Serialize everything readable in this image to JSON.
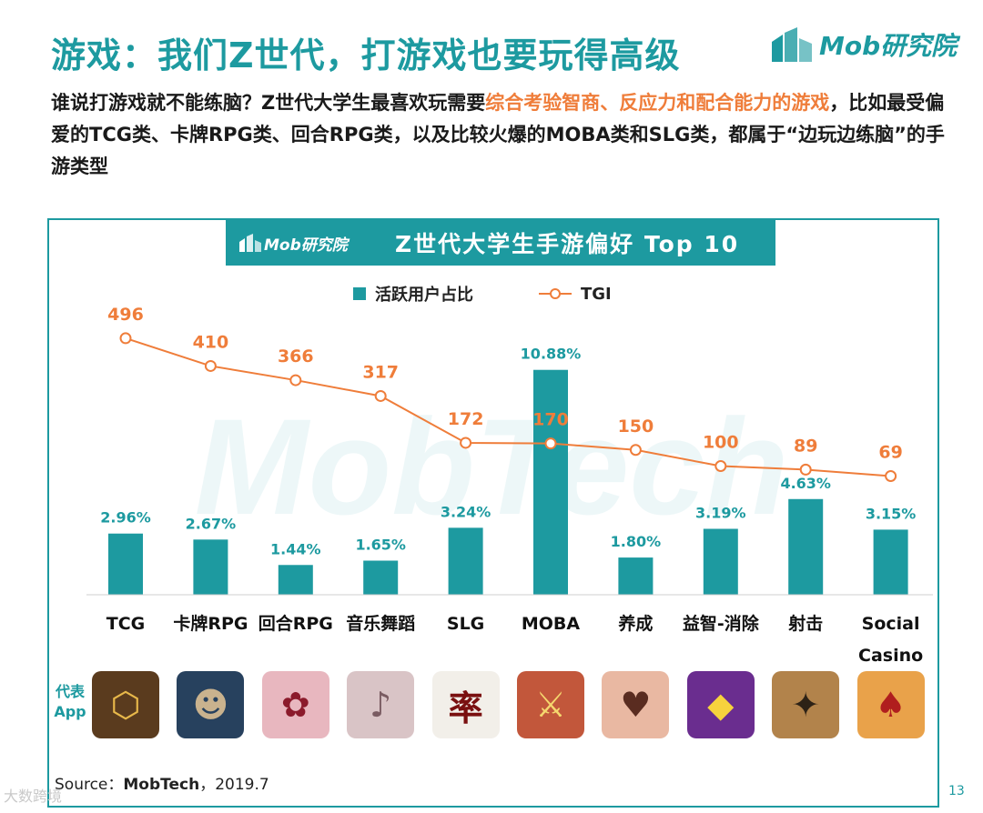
{
  "header": {
    "title": "游戏：我们Z世代，打游戏也要玩得高级",
    "logo_text": "Mob研究院"
  },
  "intro": {
    "part1": "谁说打游戏就不能练脑？Z世代大学生最喜欢玩需要",
    "highlight": "综合考验智商、反应力和配合能力的游戏",
    "part2": "，比如最受偏爱的TCG类、卡牌RPG类、回合RPG类，以及比较火爆的MOBA类和SLG类，都属于“边玩边练脑”的手游类型"
  },
  "chart_header": {
    "logo_text": "Mob研究院",
    "title": "Z世代大学生手游偏好 Top 10"
  },
  "legend": {
    "bar_label": "活跃用户占比",
    "line_label": "TGI"
  },
  "watermark": "MobTech",
  "chart_data": {
    "type": "bar",
    "title": "Z世代大学生手游偏好 Top 10",
    "categories": [
      "TCG",
      "卡牌RPG",
      "回合RPG",
      "音乐舞蹈",
      "SLG",
      "MOBA",
      "养成",
      "益智-消除",
      "射击",
      "Social Casino"
    ],
    "category_lines": [
      [
        "TCG"
      ],
      [
        "卡牌RPG"
      ],
      [
        "回合RPG"
      ],
      [
        "音乐舞蹈"
      ],
      [
        "SLG"
      ],
      [
        "MOBA"
      ],
      [
        "养成"
      ],
      [
        "益智-消除"
      ],
      [
        "射击"
      ],
      [
        "Social",
        "Casino"
      ]
    ],
    "series": [
      {
        "name": "活跃用户占比",
        "type": "bar",
        "values": [
          2.96,
          2.67,
          1.44,
          1.65,
          3.24,
          10.88,
          1.8,
          3.19,
          4.63,
          3.15
        ],
        "labels": [
          "2.96%",
          "2.67%",
          "1.44%",
          "1.65%",
          "3.24%",
          "10.88%",
          "1.80%",
          "3.19%",
          "4.63%",
          "3.15%"
        ],
        "color": "#1d9aa0"
      },
      {
        "name": "TGI",
        "type": "line",
        "values": [
          496,
          410,
          366,
          317,
          172,
          170,
          150,
          100,
          89,
          69
        ],
        "color": "#ef7d3a"
      }
    ],
    "ylim_bar": [
      0,
      11
    ],
    "ylim_line": [
      0,
      500
    ],
    "legend_position": "top-center"
  },
  "apps": {
    "label": "代表App",
    "icons": [
      {
        "name": "hearthstone-icon",
        "bg": "#5a3b1e",
        "fg": "#e8b84a",
        "glyph": "⬡"
      },
      {
        "name": "arknights-icon",
        "bg": "#27415e",
        "fg": "#c9b28e",
        "glyph": "☻"
      },
      {
        "name": "onmyoji-icon",
        "bg": "#e8b7bf",
        "fg": "#8b1a2b",
        "glyph": "✿"
      },
      {
        "name": "music-game-icon",
        "bg": "#d9c4c6",
        "fg": "#7a5c62",
        "glyph": "♪"
      },
      {
        "name": "slg-game-icon",
        "bg": "#f2efe9",
        "fg": "#7a1010",
        "glyph": "率"
      },
      {
        "name": "honor-of-kings-icon",
        "bg": "#c2573b",
        "fg": "#f5d76e",
        "glyph": "⚔"
      },
      {
        "name": "otome-game-icon",
        "bg": "#e9b8a2",
        "fg": "#5a2c20",
        "glyph": "♥"
      },
      {
        "name": "match-three-icon",
        "bg": "#6a2d8f",
        "fg": "#f7d23d",
        "glyph": "◆"
      },
      {
        "name": "pubg-mobile-icon",
        "bg": "#b2834b",
        "fg": "#2d2216",
        "glyph": "✦"
      },
      {
        "name": "social-casino-icon",
        "bg": "#e9a24a",
        "fg": "#b01e1e",
        "glyph": "♠"
      }
    ]
  },
  "footer": {
    "source_prefix": "Source：",
    "source_name": "MobTech",
    "source_date": "，2019.7",
    "page_number": "13",
    "corner_watermark": "大数跨境"
  }
}
